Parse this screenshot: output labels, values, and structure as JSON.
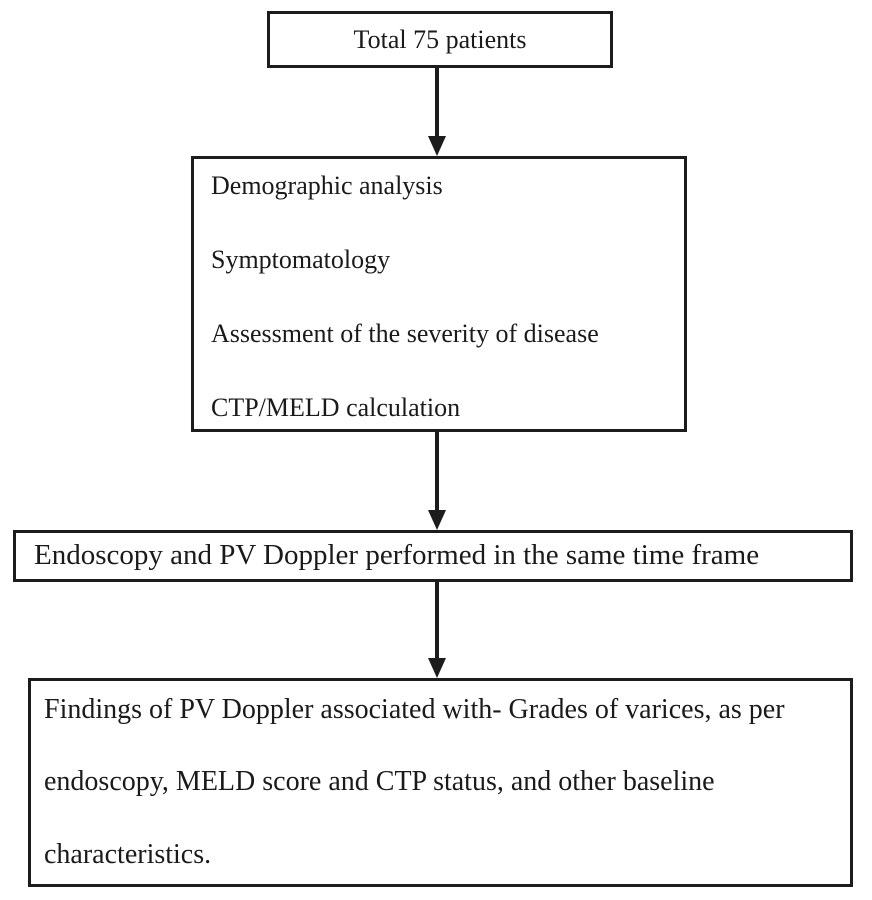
{
  "diagram": {
    "type": "flowchart",
    "ink_color": "#1c1c1c",
    "background_color": "#ffffff",
    "nodes": [
      {
        "id": "total-patients",
        "lines": [
          "Total 75 patients"
        ]
      },
      {
        "id": "baseline-workup",
        "lines": [
          "Demographic analysis",
          "Symptomatology",
          "Assessment of the severity of disease",
          "CTP/MELD calculation"
        ]
      },
      {
        "id": "procedures",
        "lines": [
          "Endoscopy and PV Doppler performed in the same time frame"
        ]
      },
      {
        "id": "findings",
        "lines": [
          "Findings of PV Doppler associated with- Grades of varices, as per",
          "endoscopy, MELD score and CTP status, and other baseline",
          "characteristics."
        ]
      }
    ],
    "connectors": [
      {
        "from": "total-patients",
        "to": "baseline-workup",
        "style": "arrow-down"
      },
      {
        "from": "baseline-workup",
        "to": "procedures",
        "style": "arrow-down"
      },
      {
        "from": "procedures",
        "to": "findings",
        "style": "arrow-down"
      }
    ]
  }
}
